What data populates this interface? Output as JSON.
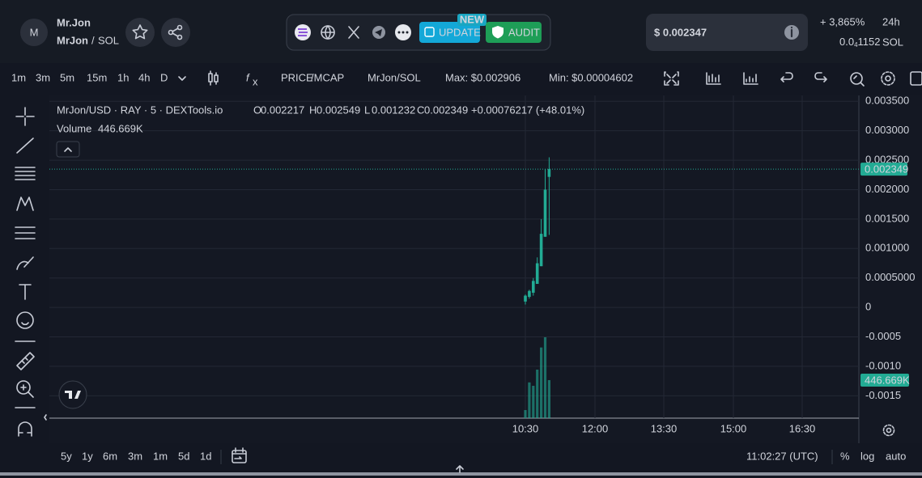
{
  "header": {
    "logo_letter": "M",
    "token_name": "Mr.Jon",
    "pair": "MrJon",
    "pair_separator": "/",
    "quote": "SOL",
    "new_badge": "NEW",
    "update_button": "UPDATE",
    "audit_button": "AUDIT",
    "price": "$ 0.002347",
    "change": "+ 3,865%",
    "period": "24h",
    "sol_price": {
      "prefix": "0.0",
      "zeros": "4",
      "digits": "1152"
    },
    "sol_quote": "SOL"
  },
  "toolbar": {
    "intervals": [
      "1m",
      "3m",
      "5m",
      "15m",
      "1h",
      "4h",
      "D"
    ],
    "active_interval": 2,
    "price_toggle": "PRICE",
    "mcap_toggle": "/MCAP",
    "pair": "MrJon/SOL",
    "max": "Max: $0.002906",
    "min": "Min: $0.00004602"
  },
  "legend": {
    "symbol": "MrJon/USD · RAY · 5 · DEXTools.io",
    "ohlc": [
      {
        "key": "O",
        "value": "0.002217"
      },
      {
        "key": "H",
        "value": "0.002549"
      },
      {
        "key": "L",
        "value": "0.001232"
      },
      {
        "key": "C",
        "value": "0.002349"
      }
    ],
    "change": "+0.00076217 (+48.01%)",
    "volume_label": "Volume",
    "volume_value": "446.669K"
  },
  "chart": {
    "ylim": [
      -0.00188,
      0.0036
    ],
    "yticks": [
      {
        "value": 0.0035,
        "label": "0.003500"
      },
      {
        "value": 0.003,
        "label": "0.003000"
      },
      {
        "value": 0.0025,
        "label": "0.002500"
      },
      {
        "value": 0.002,
        "label": "0.002000"
      },
      {
        "value": 0.0015,
        "label": "0.001500"
      },
      {
        "value": 0.001,
        "label": "0.001000"
      },
      {
        "value": 0.0005,
        "label": "0.0005000"
      },
      0,
      -0.0005,
      {
        "value": -0.001,
        "label": "-0.0010"
      },
      -0.0015
    ],
    "xticks": [
      "10:30",
      "12:00",
      "13:30",
      "15:00",
      "16:30"
    ],
    "candles": [
      {
        "open": 0.0001,
        "high": 0.00022,
        "low": 5e-05,
        "close": 0.0002
      },
      {
        "open": 0.00018,
        "high": 0.0003,
        "low": 0.00015,
        "close": 0.00028
      },
      {
        "open": 0.00025,
        "high": 0.0005,
        "low": 0.0002,
        "close": 0.00045
      },
      {
        "open": 0.0004,
        "high": 0.00085,
        "low": 0.0004,
        "close": 0.00075
      },
      {
        "open": 0.0007,
        "high": 0.0015,
        "low": 0.0007,
        "close": 0.00125
      },
      {
        "open": 0.0012,
        "high": 0.00235,
        "low": 0.0012,
        "close": 0.002
      },
      {
        "open": 0.002217,
        "high": 0.002549,
        "low": 0.001232,
        "close": 0.002349
      }
    ],
    "volumes": [
      95000,
      420000,
      380000,
      570000,
      830000,
      950000,
      446669
    ],
    "last_price": 0.002349,
    "last_price_label": "0.002349",
    "last_volume_label": "446.669K",
    "color_up": "#22ab94"
  },
  "footer": {
    "ranges": [
      "5y",
      "1y",
      "6m",
      "3m",
      "1m",
      "5d",
      "1d"
    ],
    "clock": "11:02:27 (UTC)",
    "percent": "%",
    "log": "log",
    "auto": "auto"
  }
}
